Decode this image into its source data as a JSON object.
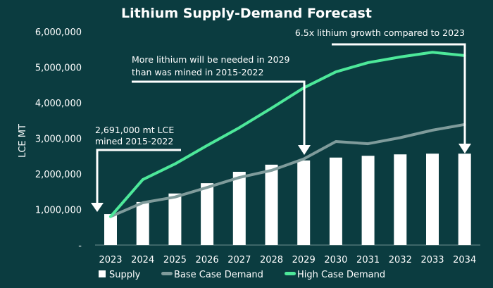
{
  "colors": {
    "background": "#0b3c40",
    "supply": "#ffffff",
    "base": "#7f9b9b",
    "high": "#4de89a",
    "text": "#ffffff"
  },
  "chart_data": {
    "type": "bar+line",
    "title": "Lithium Supply-Demand Forecast",
    "xlabel": "",
    "ylabel": "LCE MT",
    "ylim": [
      0,
      6000000
    ],
    "yticks": [
      0,
      1000000,
      2000000,
      3000000,
      4000000,
      5000000,
      6000000
    ],
    "ytick_labels": [
      "-",
      "1,000,000",
      "2,000,000",
      "3,000,000",
      "4,000,000",
      "5,000,000",
      "6,000,000"
    ],
    "categories": [
      "2023",
      "2024",
      "2025",
      "2026",
      "2027",
      "2028",
      "2029",
      "2030",
      "2031",
      "2032",
      "2033",
      "2034"
    ],
    "grid": false,
    "legend_position": "bottom",
    "series": [
      {
        "name": "Supply",
        "type": "bar",
        "values": [
          870000,
          1210000,
          1450000,
          1740000,
          2060000,
          2260000,
          2380000,
          2460000,
          2510000,
          2550000,
          2570000,
          2570000
        ]
      },
      {
        "name": "Base Case Demand",
        "type": "line",
        "values": [
          800000,
          1190000,
          1350000,
          1620000,
          1900000,
          2100000,
          2420000,
          2910000,
          2850000,
          3020000,
          3230000,
          3390000
        ]
      },
      {
        "name": "High Case Demand",
        "type": "line",
        "values": [
          800000,
          1840000,
          2280000,
          2800000,
          3300000,
          3850000,
          4420000,
          4870000,
          5130000,
          5290000,
          5420000,
          5330000
        ]
      }
    ],
    "annotations": [
      {
        "lines": [
          "2,691,000 mt LCE",
          "mined 2015-2022"
        ],
        "target": "2023"
      },
      {
        "lines": [
          "More lithium will be needed in 2029",
          "than was mined in 2015-2022"
        ],
        "target": "2029"
      },
      {
        "lines": [
          "6.5x lithium growth compared to 2023"
        ],
        "target": "2034"
      }
    ]
  }
}
